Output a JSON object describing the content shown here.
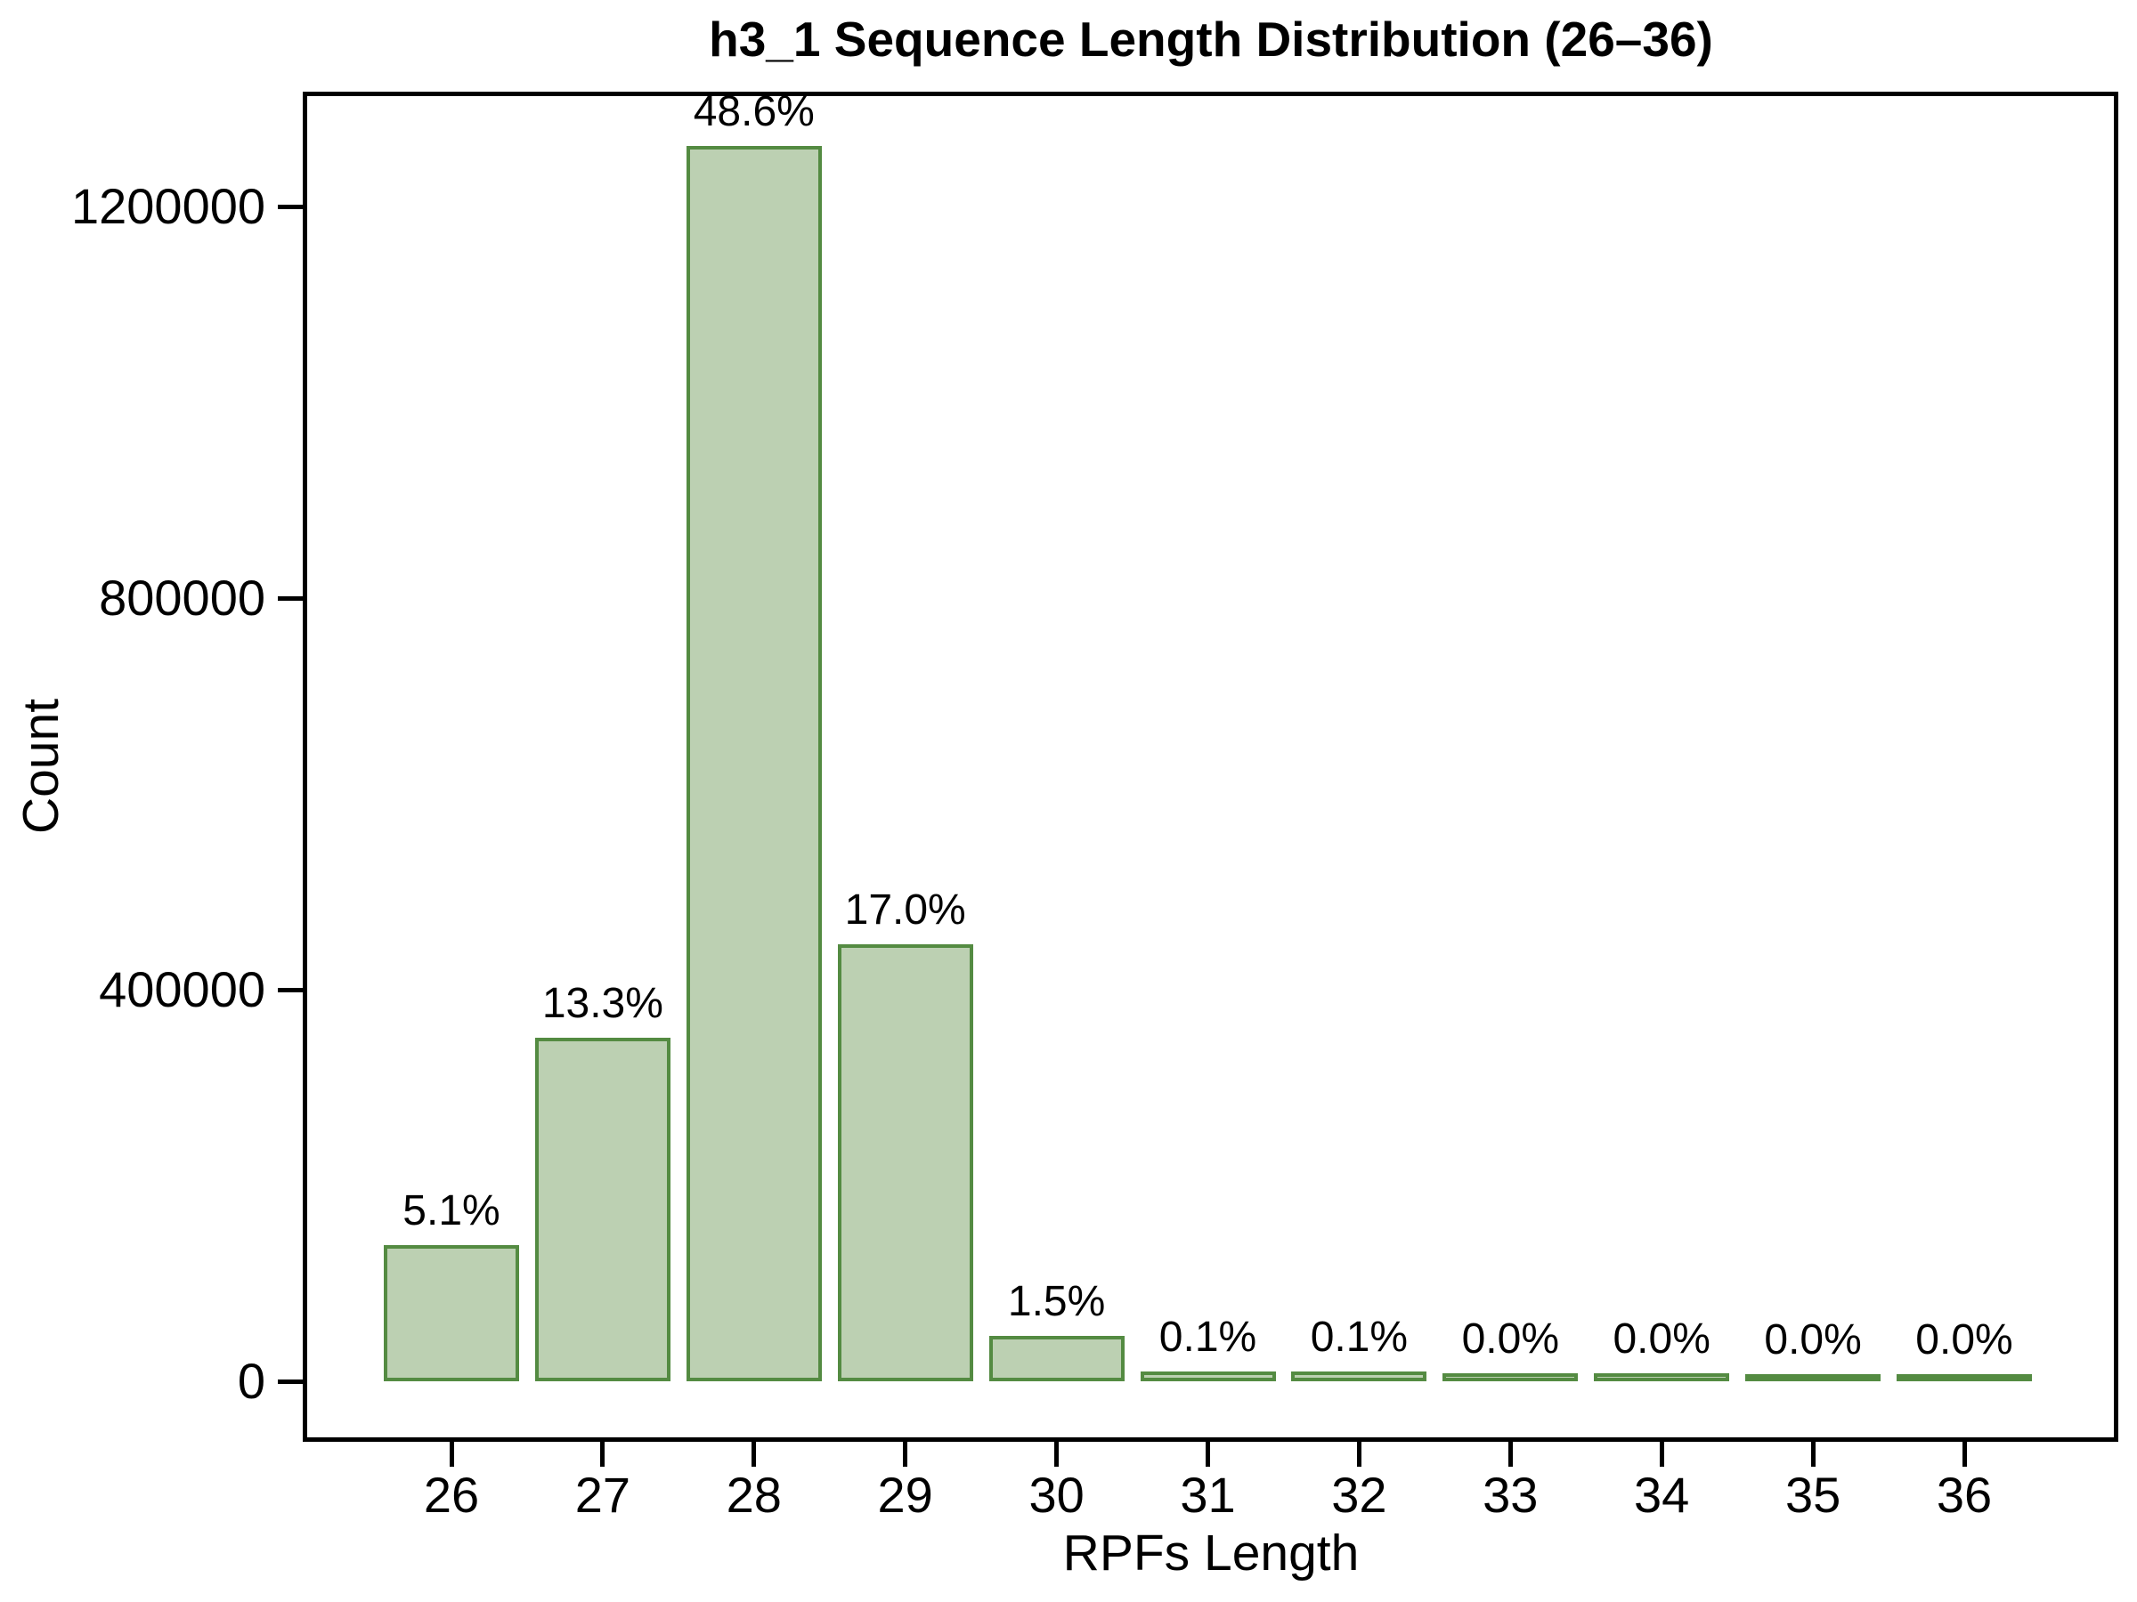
{
  "chart_data": {
    "type": "bar",
    "title": "h3_1 Sequence Length Distribution (26–36)",
    "xlabel": "RPFs Length",
    "ylabel": "Count",
    "categories": [
      "26",
      "27",
      "28",
      "29",
      "30",
      "31",
      "32",
      "33",
      "34",
      "35",
      "36"
    ],
    "percent_labels": [
      "5.1%",
      "13.3%",
      "48.6%",
      "17.0%",
      "1.5%",
      "0.1%",
      "0.1%",
      "0.0%",
      "0.0%",
      "0.0%",
      "0.0%"
    ],
    "percents": [
      5.1,
      13.3,
      48.6,
      17.0,
      1.5,
      0.1,
      0.1,
      0.0,
      0.0,
      0.0,
      0.0
    ],
    "counts_estimated": [
      131600,
      343300,
      1254400,
      438800,
      38700,
      2600,
      2600,
      900,
      600,
      400,
      300
    ],
    "y_tick_values": [
      0,
      400000,
      800000,
      1200000
    ],
    "y_tick_labels": [
      "0",
      "400000",
      "800000",
      "1200000"
    ],
    "ylim": [
      0,
      1320000
    ],
    "grid": false,
    "legend": false,
    "colors": {
      "bar_fill": "#bcd0b2",
      "bar_stroke": "#548b42",
      "axis": "#000000",
      "text": "#000000",
      "background": "#ffffff"
    }
  }
}
